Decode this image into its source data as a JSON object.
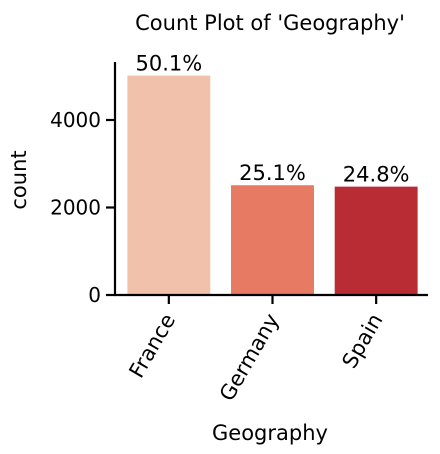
{
  "chart_data": {
    "type": "bar",
    "title": "Count Plot of 'Geography'",
    "xlabel": "Geography",
    "ylabel": "count",
    "categories": [
      "France",
      "Germany",
      "Spain"
    ],
    "values": [
      5014,
      2509,
      2477
    ],
    "data_labels": [
      "50.1%",
      "25.1%",
      "24.8%"
    ],
    "colors": [
      "#f2c1ab",
      "#e67a62",
      "#ba2c34"
    ],
    "ylim": [
      0,
      5200
    ],
    "yticks": [
      0,
      2000,
      4000
    ],
    "grid": false,
    "legend": "none"
  }
}
